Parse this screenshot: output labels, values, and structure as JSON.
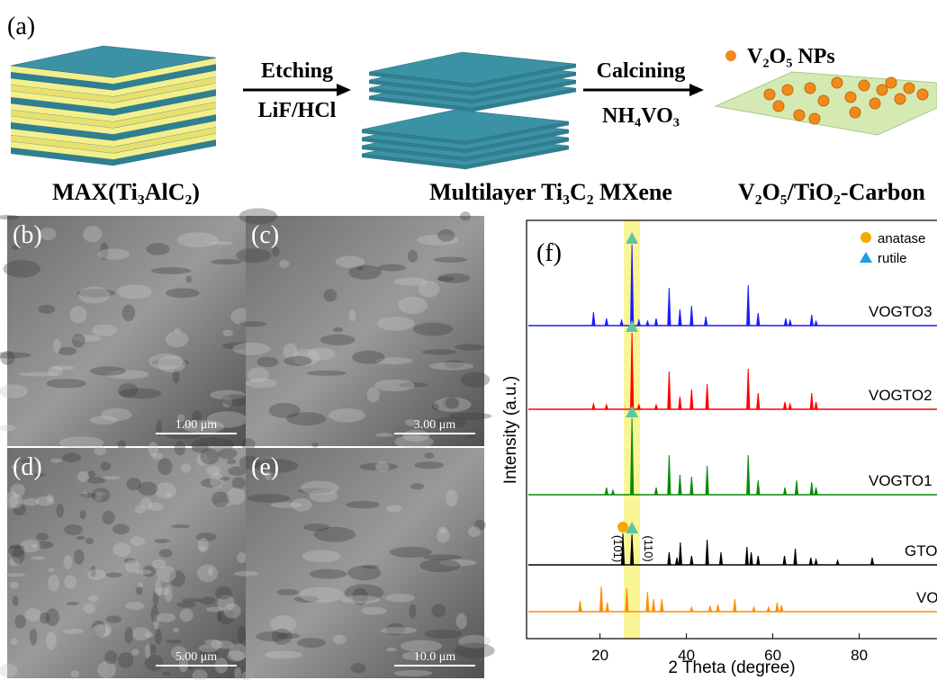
{
  "panel_a": {
    "label": "(a)",
    "step1_top": "Etching",
    "step1_bottom": "LiF/HCl",
    "step2_top": "Calcining",
    "step2_bottom": "NH₄VO₃",
    "legend": "V₂O₅ NPs",
    "caption_max": "MAX(Ti₃AlC₂)",
    "caption_mxene": "Multilayer Ti₃C₂ MXene",
    "caption_product": "V₂O₅/TiO₂-Carbon"
  },
  "sem_panels": [
    {
      "label": "(b)",
      "scale": "1.00 μm"
    },
    {
      "label": "(c)",
      "scale": "3.00 μm"
    },
    {
      "label": "(d)",
      "scale": "5.00 μm"
    },
    {
      "label": "(e)",
      "scale": "10.0 μm"
    }
  ],
  "chart_data": {
    "type": "xrd",
    "label": "(f)",
    "xlabel": "2 Theta (degree)",
    "ylabel": "Intensity (a.u.)",
    "xlim": [
      3,
      98
    ],
    "xticks": [
      20,
      40,
      60,
      80
    ],
    "highlight": 27.4,
    "legend": [
      {
        "name": "anatase",
        "color": "#f5a800"
      },
      {
        "name": "rutile",
        "color": "#1aa0e0"
      }
    ],
    "annotations": [
      "(101)",
      "(110)"
    ],
    "series": [
      {
        "name": "VOGTO3",
        "color": "#1a1aff",
        "x": [
          18.5,
          21.5,
          25,
          27.4,
          29,
          31,
          33,
          36,
          38.5,
          41.2,
          44.5,
          54.3,
          56.6,
          63,
          64,
          69,
          70
        ],
        "values": [
          15,
          8,
          6,
          90,
          6,
          5,
          8,
          42,
          18,
          22,
          10,
          45,
          14,
          8,
          6,
          12,
          5
        ]
      },
      {
        "name": "VOGTO2",
        "color": "#ff0000",
        "x": [
          18.5,
          21.5,
          27.4,
          29,
          33,
          36,
          38.5,
          41.2,
          44.8,
          54.3,
          56.6,
          62.8,
          64,
          69,
          70
        ],
        "values": [
          6,
          5,
          85,
          5,
          5,
          42,
          14,
          22,
          28,
          45,
          18,
          8,
          6,
          18,
          8
        ]
      },
      {
        "name": "VOGTO1",
        "color": "#0a8a0a",
        "x": [
          21.5,
          23,
          27.4,
          33,
          36,
          38.5,
          41.2,
          44.8,
          54.3,
          56.6,
          62.8,
          65.5,
          69,
          70
        ],
        "values": [
          8,
          5,
          85,
          8,
          44,
          22,
          20,
          32,
          44,
          16,
          8,
          16,
          14,
          8
        ]
      },
      {
        "name": "GTO",
        "color": "#000000",
        "x": [
          25.3,
          27.4,
          36,
          37.8,
          38.6,
          41.2,
          44.8,
          48,
          54,
          55,
          56.6,
          62.7,
          65.2,
          68.8,
          70,
          75,
          83
        ],
        "values": [
          35,
          34,
          14,
          8,
          25,
          10,
          28,
          14,
          20,
          14,
          10,
          10,
          18,
          8,
          6,
          5,
          8
        ]
      },
      {
        "name": "VO",
        "color": "#ff8c00",
        "x": [
          15.4,
          20.3,
          21.7,
          26.2,
          31,
          32.4,
          34.3,
          41.2,
          45.5,
          47.3,
          51.2,
          55.6,
          59,
          61,
          62
        ],
        "values": [
          12,
          28,
          10,
          26,
          22,
          14,
          14,
          5,
          6,
          8,
          14,
          5,
          5,
          10,
          7
        ]
      }
    ]
  }
}
